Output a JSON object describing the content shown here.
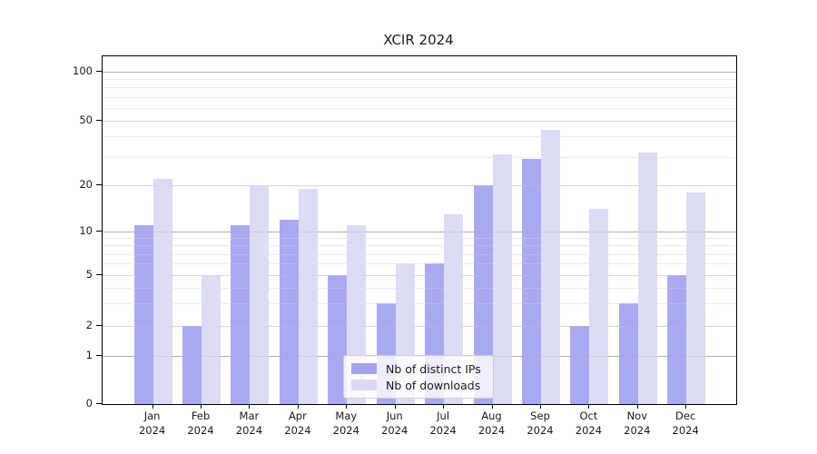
{
  "chart_data": {
    "type": "bar",
    "title": "XCIR 2024",
    "categories": [
      "Jan",
      "Feb",
      "Mar",
      "Apr",
      "May",
      "Jun",
      "Jul",
      "Aug",
      "Sep",
      "Oct",
      "Nov",
      "Dec"
    ],
    "category_year": "2024",
    "series": [
      {
        "name": "Nb of distinct IPs",
        "color": "#a3a3f0",
        "values": [
          11,
          2,
          11,
          12,
          5,
          3,
          6,
          20,
          29,
          2,
          3,
          5
        ]
      },
      {
        "name": "Nb of downloads",
        "color": "#d9d9f5",
        "values": [
          22,
          5,
          20,
          19,
          11,
          6,
          13,
          31,
          44,
          14,
          32,
          18
        ]
      }
    ],
    "yscale": "log-like",
    "ytick_labels": [
      "0",
      "1",
      "2",
      "5",
      "10",
      "20",
      "50",
      "100"
    ],
    "ytick_values": [
      0,
      1,
      2,
      5,
      10,
      20,
      50,
      100
    ],
    "ylim": [
      0,
      120
    ],
    "grid": "horizontal",
    "legend_position": "lower-center",
    "colors": {
      "axis": "#000000",
      "grid_major": "#b0b0b0",
      "grid_mid": "#d7d7d7",
      "grid_minor": "#ebebeb"
    }
  }
}
